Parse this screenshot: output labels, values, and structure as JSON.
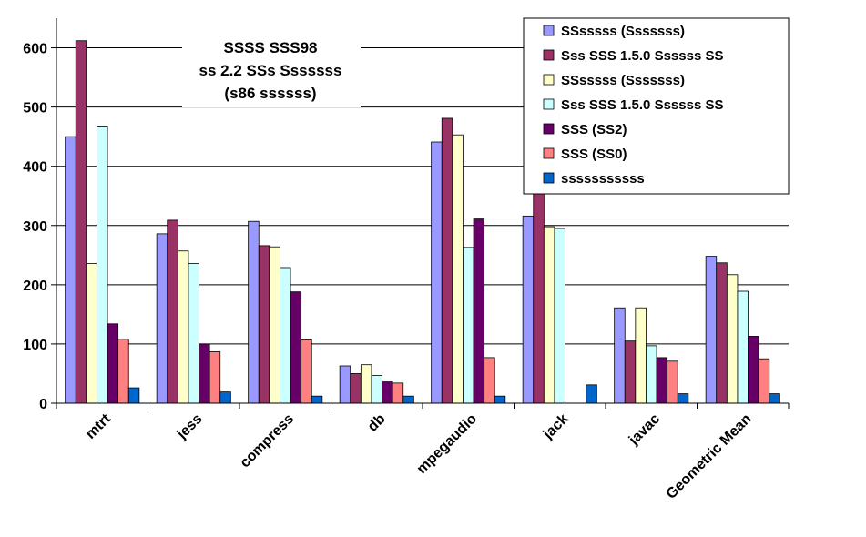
{
  "chart_data": {
    "type": "bar",
    "title_lines": [
      "SSSS SSS98",
      "ss 2.2 SSs Sssssss",
      "(s86 ssssss)"
    ],
    "xlabel": "",
    "ylabel": "",
    "ylim": [
      0,
      650
    ],
    "yticks": [
      0,
      100,
      200,
      300,
      400,
      500,
      600
    ],
    "grid": true,
    "legend_position": "top-right",
    "categories": [
      "mtrt",
      "jess",
      "compress",
      "db",
      "mpegaudio",
      "jack",
      "javac",
      "Geometric Mean"
    ],
    "series": [
      {
        "name": "SSsssss (Sssssss)",
        "color": "#9999ff",
        "values": [
          450,
          286,
          307,
          63,
          441,
          316,
          161,
          248
        ]
      },
      {
        "name": "Sss SSS 1.5.0 Ssssss SS",
        "color": "#993366",
        "values": [
          612,
          309,
          266,
          50,
          481,
          430,
          105,
          237
        ]
      },
      {
        "name": "SSsssss (Sssssss)",
        "color": "#ffffcc",
        "values": [
          236,
          257,
          264,
          65,
          453,
          298,
          161,
          217
        ]
      },
      {
        "name": "Sss SSS 1.5.0 Ssssss SS",
        "color": "#ccffff",
        "values": [
          468,
          236,
          229,
          47,
          263,
          295,
          97,
          189
        ]
      },
      {
        "name": "SSS (SS2)",
        "color": "#660066",
        "values": [
          134,
          100,
          188,
          36,
          311,
          0,
          77,
          113
        ]
      },
      {
        "name": "SSS (SS0)",
        "color": "#ff8080",
        "values": [
          108,
          87,
          107,
          34,
          77,
          0,
          71,
          75
        ]
      },
      {
        "name": "sssssssssss",
        "color": "#0066cc",
        "values": [
          26,
          19,
          12,
          12,
          12,
          31,
          16,
          16
        ]
      }
    ]
  }
}
